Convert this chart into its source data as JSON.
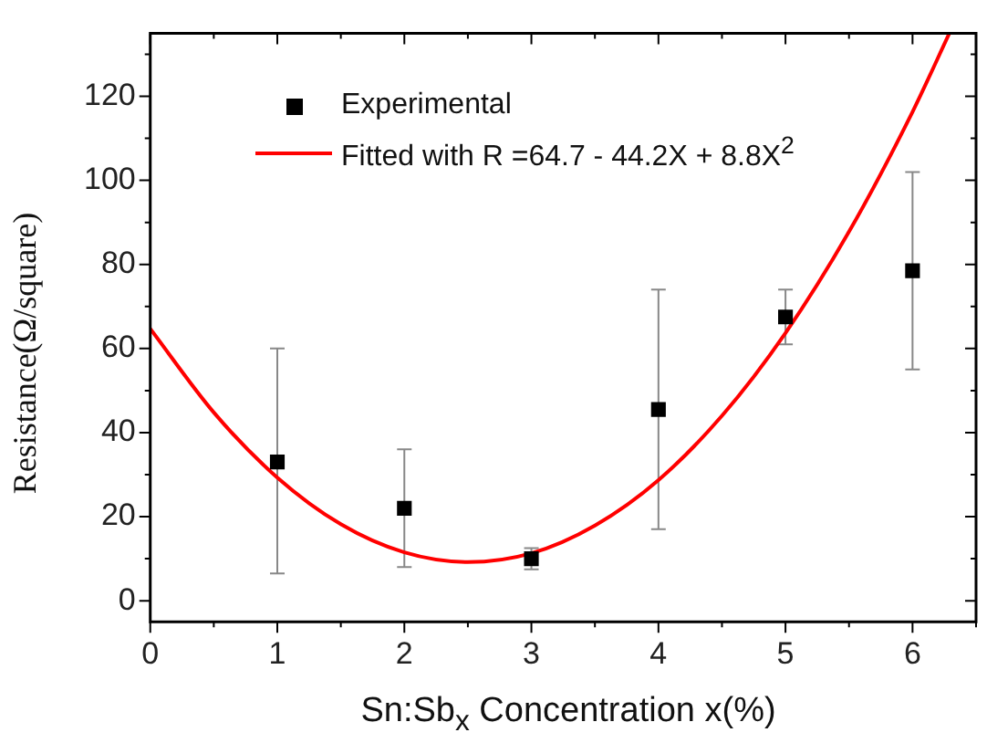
{
  "chart_data": {
    "type": "scatter",
    "xlabel": "Sn:Sb$_{x}$ Concentration x(%)",
    "ylabel": "Resistance(Ω/square)",
    "xlim": [
      0,
      6.5
    ],
    "xticks": [
      0,
      1,
      2,
      3,
      4,
      5,
      6
    ],
    "ylim": [
      -5,
      135
    ],
    "yticks": [
      0,
      20,
      40,
      60,
      80,
      100,
      120
    ],
    "grid": false,
    "legend": "top left",
    "series": [
      {
        "name": "Experimental",
        "marker": "square",
        "color": "#000000",
        "x": [
          1,
          2,
          3,
          4,
          5,
          6
        ],
        "values": [
          33,
          22,
          10,
          45.5,
          67.5,
          78.5
        ],
        "errors": [
          [
            6.5,
            60
          ],
          [
            8,
            36
          ],
          [
            7.5,
            12.5
          ],
          [
            17,
            74
          ],
          [
            61,
            74
          ],
          [
            55,
            102
          ]
        ]
      },
      {
        "name": "Fitted with R =64.7 - 44.2X + 8.8X$^{2}$",
        "type": "line",
        "marker": "none",
        "line_style": "solid",
        "color": "#ff0000",
        "x": [
          0,
          0.5,
          1,
          1.5,
          2,
          2.5,
          3,
          3.5,
          4,
          4.5,
          5,
          5.5,
          6,
          6.29
        ],
        "values": [
          64.7,
          44.8,
          29.3,
          18.2,
          11.5,
          9.2,
          11.3,
          17.9,
          28.7,
          44.0,
          63.7,
          87.8,
          116.3,
          135
        ]
      }
    ]
  }
}
